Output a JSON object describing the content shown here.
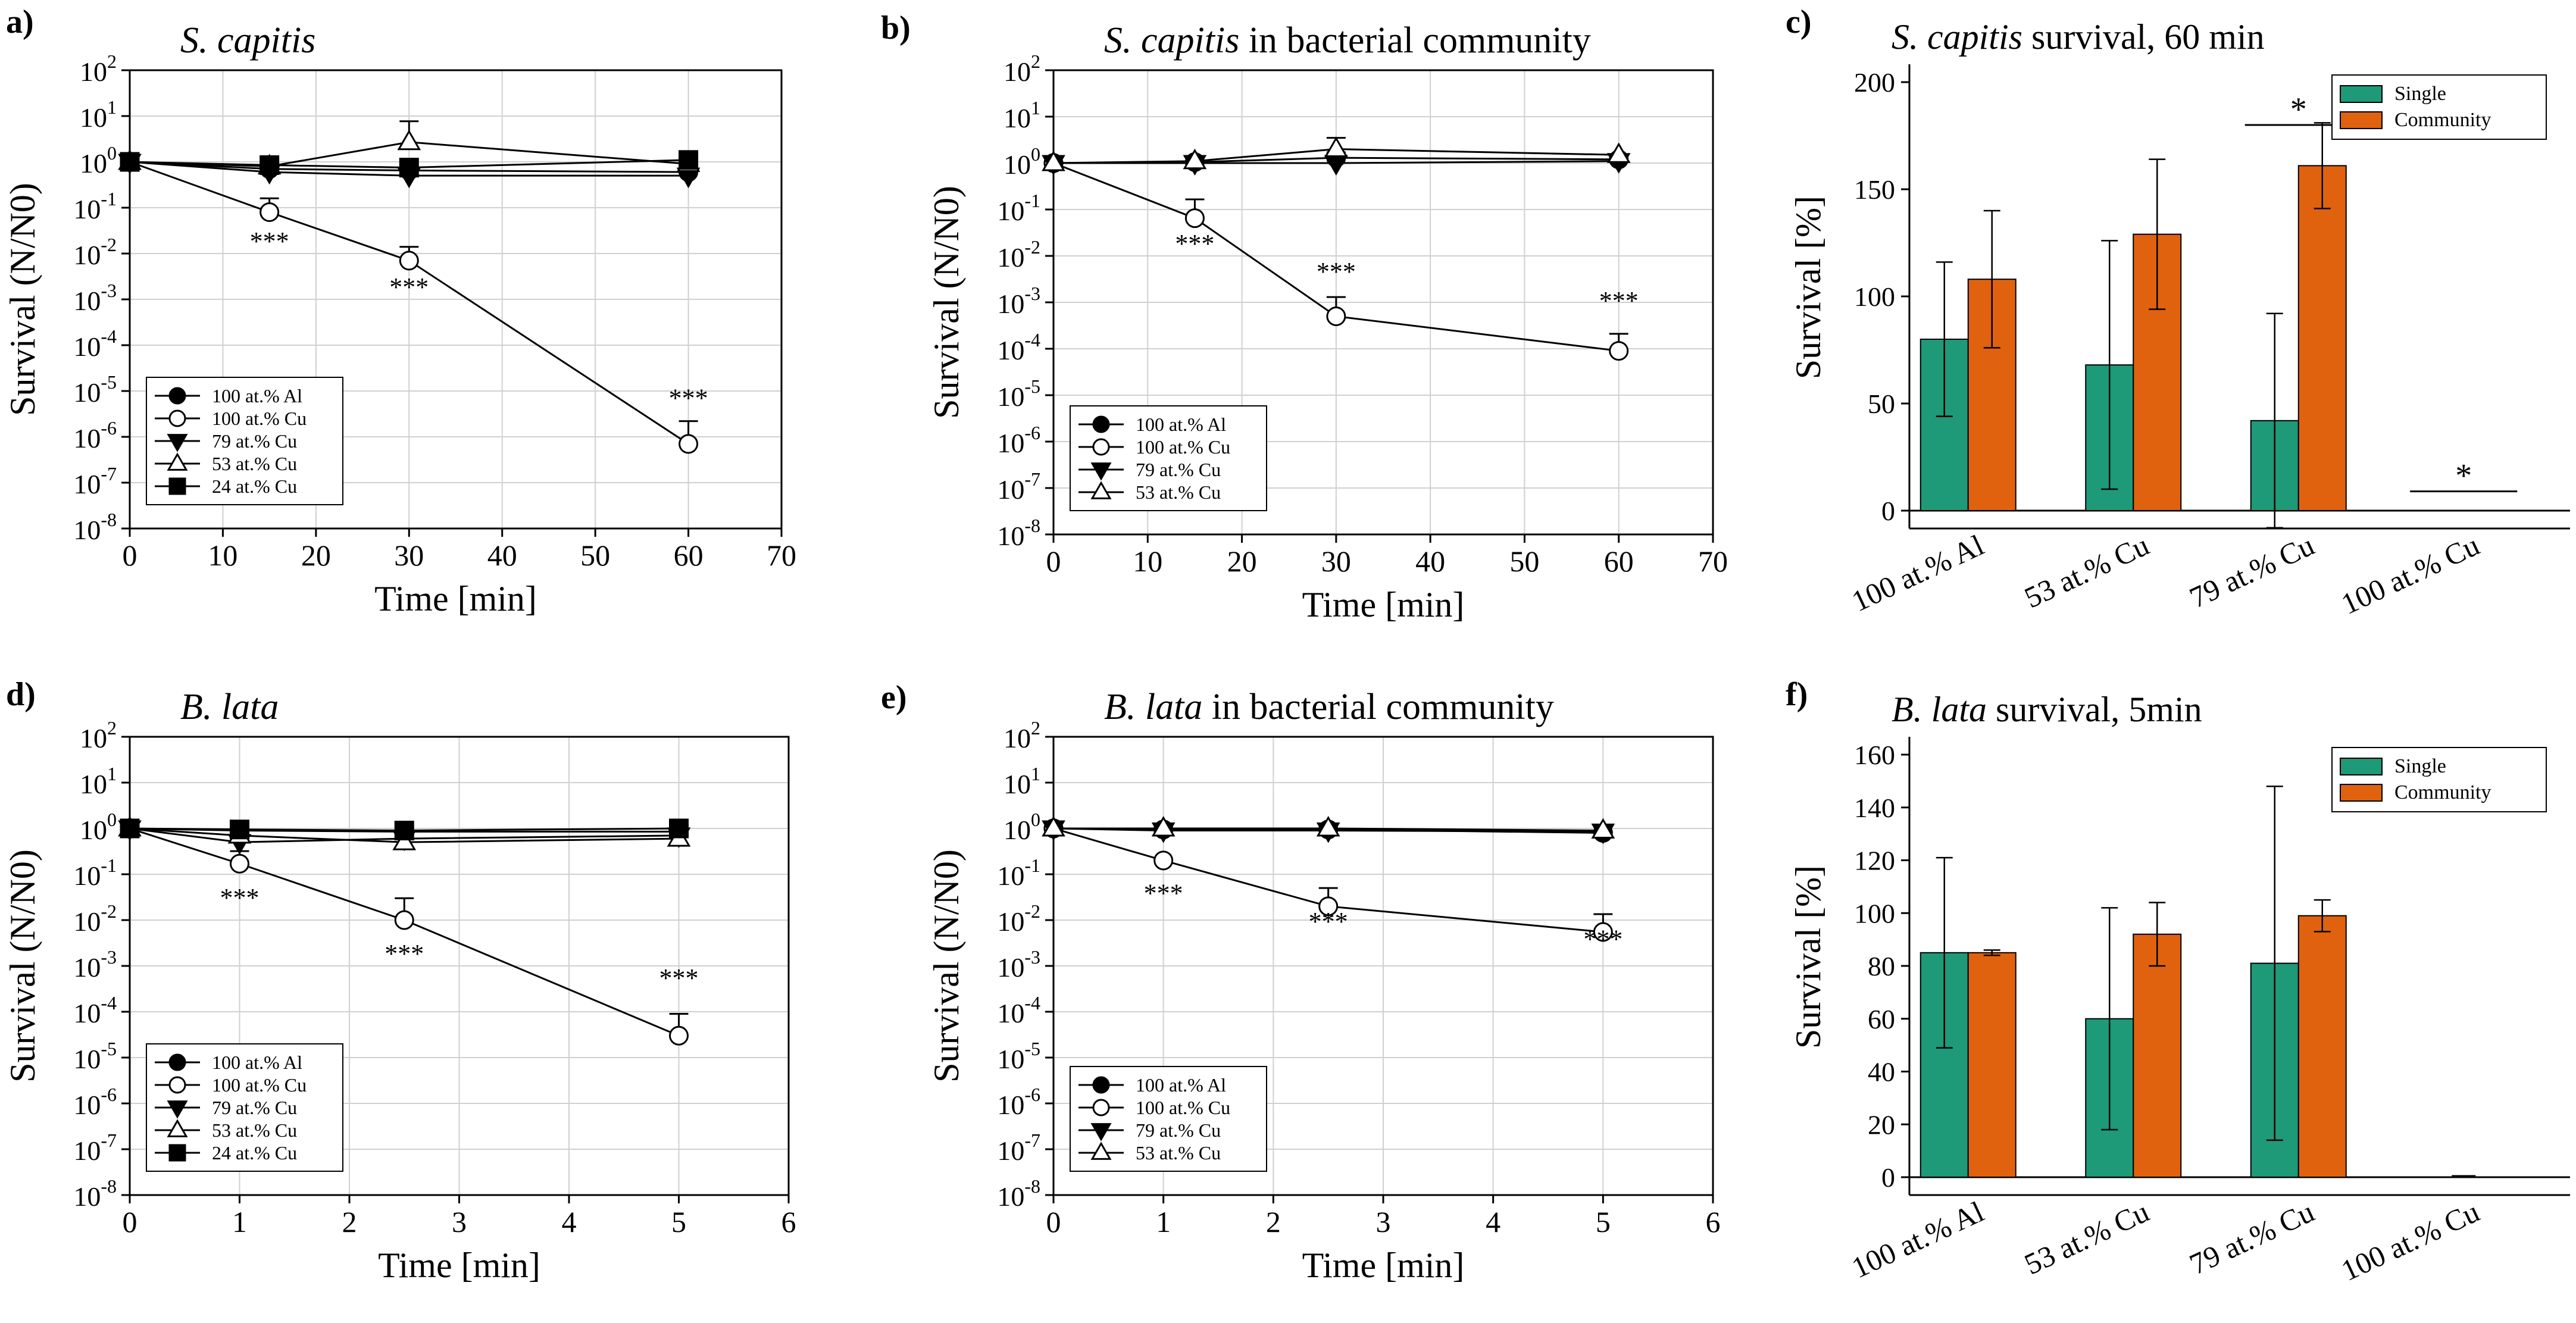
{
  "figure": {
    "colors": {
      "single": "#1e9a78",
      "community": "#e0620e",
      "grid": "#d0d0d0",
      "axis": "#000000"
    }
  },
  "chart_data": [
    {
      "panel": "a)",
      "type": "line",
      "scale": "log",
      "title_italic": "S. capitis",
      "title_rest": "",
      "xlabel": "Time [min]",
      "ylabel": "Survival (N/N0)",
      "xlim": [
        0,
        70
      ],
      "xticks": [
        "0",
        "10",
        "20",
        "30",
        "40",
        "50",
        "60",
        "70"
      ],
      "ylim_exp": [
        -8,
        2
      ],
      "legend": "bottom-left",
      "series": [
        {
          "name": "100 at.% Al",
          "marker": "circle-filled",
          "x": [
            0,
            15,
            30,
            60
          ],
          "y": [
            1.0,
            0.7,
            0.65,
            0.6
          ],
          "err": [
            0,
            0,
            0,
            0
          ]
        },
        {
          "name": "100 at.% Cu",
          "marker": "circle-open",
          "x": [
            0,
            15,
            30,
            60
          ],
          "y": [
            1.0,
            0.08,
            0.007,
            7e-07
          ],
          "err": [
            0,
            0.08,
            0.007,
            1.5e-06
          ]
        },
        {
          "name": "79 at.% Cu",
          "marker": "triangle-down-filled",
          "x": [
            0,
            15,
            30,
            60
          ],
          "y": [
            1.0,
            0.6,
            0.5,
            0.5
          ],
          "err": [
            0,
            0.3,
            0.4,
            0.4
          ]
        },
        {
          "name": "53 at.% Cu",
          "marker": "triangle-up-open",
          "x": [
            0,
            15,
            30,
            60
          ],
          "y": [
            1.0,
            0.8,
            2.7,
            0.9
          ],
          "err": [
            0,
            0,
            5,
            0
          ]
        },
        {
          "name": "24 at.% Cu",
          "marker": "square-filled",
          "x": [
            0,
            15,
            30,
            60
          ],
          "y": [
            1.0,
            0.85,
            0.75,
            1.1
          ],
          "err": [
            0,
            0,
            0,
            0
          ]
        }
      ],
      "annotations": [
        {
          "text": "***",
          "x": 15,
          "y": 0.012
        },
        {
          "text": "***",
          "x": 30,
          "y": 0.0012
        },
        {
          "text": "***",
          "x": 60,
          "y": 4.5e-06
        }
      ]
    },
    {
      "panel": "b)",
      "type": "line",
      "scale": "log",
      "title_italic": "S. capitis",
      "title_rest": " in bacterial community",
      "xlabel": "Time [min]",
      "ylabel": "Survival (N/N0)",
      "xlim": [
        0,
        70
      ],
      "xticks": [
        "0",
        "10",
        "20",
        "30",
        "40",
        "50",
        "60",
        "70"
      ],
      "ylim_exp": [
        -8,
        2
      ],
      "legend": "bottom-left",
      "series": [
        {
          "name": "100 at.% Al",
          "marker": "circle-filled",
          "x": [
            0,
            15,
            30,
            60
          ],
          "y": [
            1.0,
            1.05,
            1.3,
            1.2
          ],
          "err": [
            0,
            0,
            0,
            0
          ]
        },
        {
          "name": "100 at.% Cu",
          "marker": "circle-open",
          "x": [
            0,
            15,
            30,
            60
          ],
          "y": [
            1.0,
            0.065,
            0.0005,
            9e-05
          ],
          "err": [
            0,
            0.1,
            0.0008,
            0.00012
          ]
        },
        {
          "name": "79 at.% Cu",
          "marker": "triangle-down-filled",
          "x": [
            0,
            15,
            30,
            60
          ],
          "y": [
            1.0,
            1.0,
            1.0,
            1.1
          ],
          "err": [
            0,
            0,
            0.7,
            0
          ]
        },
        {
          "name": "53 at.% Cu",
          "marker": "triangle-up-open",
          "x": [
            0,
            15,
            30,
            60
          ],
          "y": [
            1.0,
            1.1,
            2.0,
            1.5
          ],
          "err": [
            0,
            0,
            1.5,
            0
          ]
        }
      ],
      "annotations": [
        {
          "text": "***",
          "x": 15,
          "y": 0.012
        },
        {
          "text": "***",
          "x": 30,
          "y": 0.003
        },
        {
          "text": "***",
          "x": 60,
          "y": 0.0007
        }
      ]
    },
    {
      "panel": "c)",
      "type": "bar",
      "title_italic": "S. capitis",
      "title_rest": " survival, 60 min",
      "xlabel": "",
      "ylabel": "Survival [%]",
      "ylim": [
        0,
        200
      ],
      "yticks": [
        0,
        50,
        100,
        150,
        200
      ],
      "categories": [
        "100 at.% Al",
        "53 at.% Cu",
        "79 at.% Cu",
        "100 at.% Cu"
      ],
      "legend": "top-right",
      "series": [
        {
          "name": "Single",
          "values": [
            80,
            68,
            42,
            0
          ],
          "err": [
            36,
            58,
            50,
            0
          ]
        },
        {
          "name": "Community",
          "values": [
            108,
            129,
            161,
            0
          ],
          "err": [
            32,
            35,
            20,
            0
          ]
        }
      ],
      "significance": [
        {
          "text": "*",
          "category": 2,
          "y": 180
        },
        {
          "text": "*",
          "category": 3,
          "y": 9
        }
      ]
    },
    {
      "panel": "d)",
      "type": "line",
      "scale": "log",
      "title_italic": "B. lata",
      "title_rest": "",
      "xlabel": "Time [min]",
      "ylabel": "Survival (N/N0)",
      "xlim": [
        0,
        6
      ],
      "xticks": [
        "0",
        "1",
        "2",
        "3",
        "4",
        "5",
        "6"
      ],
      "ylim_exp": [
        -8,
        2
      ],
      "legend": "bottom-left",
      "series": [
        {
          "name": "100 at.% Al",
          "marker": "circle-filled",
          "x": [
            0,
            1,
            2.5,
            5
          ],
          "y": [
            1.0,
            0.9,
            0.85,
            0.85
          ],
          "err": [
            0,
            0,
            0,
            0
          ]
        },
        {
          "name": "100 at.% Cu",
          "marker": "circle-open",
          "x": [
            0,
            1,
            2.5,
            5
          ],
          "y": [
            1.0,
            0.17,
            0.01,
            3e-05
          ],
          "err": [
            0,
            0.15,
            0.02,
            6e-05
          ]
        },
        {
          "name": "79 at.% Cu",
          "marker": "triangle-down-filled",
          "x": [
            0,
            1,
            2.5,
            5
          ],
          "y": [
            1.0,
            0.5,
            0.6,
            0.7
          ],
          "err": [
            0,
            0.3,
            0.4,
            0.5
          ]
        },
        {
          "name": "53 at.% Cu",
          "marker": "triangle-up-open",
          "x": [
            0,
            1,
            2.5,
            5
          ],
          "y": [
            1.0,
            0.7,
            0.5,
            0.6
          ],
          "err": [
            0,
            0,
            0.4,
            0.4
          ]
        },
        {
          "name": "24 at.% Cu",
          "marker": "square-filled",
          "x": [
            0,
            1,
            2.5,
            5
          ],
          "y": [
            1.0,
            0.95,
            0.9,
            1.0
          ],
          "err": [
            0,
            0,
            0,
            0
          ]
        }
      ],
      "annotations": [
        {
          "text": "***",
          "x": 1,
          "y": 0.02
        },
        {
          "text": "***",
          "x": 2.5,
          "y": 0.0012
        },
        {
          "text": "***",
          "x": 5,
          "y": 0.00035
        }
      ]
    },
    {
      "panel": "e)",
      "type": "line",
      "scale": "log",
      "title_italic": "B. lata",
      "title_rest": " in bacterial community",
      "xlabel": "Time [min]",
      "ylabel": "Survival (N/N0)",
      "xlim": [
        0,
        6
      ],
      "xticks": [
        "0",
        "1",
        "2",
        "3",
        "4",
        "5",
        "6"
      ],
      "ylim_exp": [
        -8,
        2
      ],
      "legend": "bottom-left",
      "series": [
        {
          "name": "100 at.% Al",
          "marker": "circle-filled",
          "x": [
            0,
            1,
            2.5,
            5
          ],
          "y": [
            1.0,
            0.95,
            0.95,
            0.8
          ],
          "err": [
            0,
            0,
            0,
            0
          ]
        },
        {
          "name": "100 at.% Cu",
          "marker": "circle-open",
          "x": [
            0,
            1,
            2.5,
            5
          ],
          "y": [
            1.0,
            0.2,
            0.02,
            0.0055
          ],
          "err": [
            0,
            0,
            0.03,
            0.008
          ]
        },
        {
          "name": "79 at.% Cu",
          "marker": "triangle-down-filled",
          "x": [
            0,
            1,
            2.5,
            5
          ],
          "y": [
            1.0,
            0.9,
            0.9,
            0.85
          ],
          "err": [
            0,
            0,
            0,
            0
          ]
        },
        {
          "name": "53 at.% Cu",
          "marker": "triangle-up-open",
          "x": [
            0,
            1,
            2.5,
            5
          ],
          "y": [
            1.0,
            1.0,
            1.0,
            0.9
          ],
          "err": [
            0,
            0,
            0,
            0
          ]
        }
      ],
      "annotations": [
        {
          "text": "***",
          "x": 1,
          "y": 0.025
        },
        {
          "text": "***",
          "x": 2.5,
          "y": 0.006
        },
        {
          "text": "***",
          "x": 5,
          "y": 0.0025
        }
      ]
    },
    {
      "panel": "f)",
      "type": "bar",
      "title_italic": "B. lata",
      "title_rest": " survival, 5min",
      "xlabel": "",
      "ylabel": "Survival [%]",
      "ylim": [
        0,
        160
      ],
      "yticks": [
        0,
        20,
        40,
        60,
        80,
        100,
        120,
        140,
        160
      ],
      "categories": [
        "100 at.% Al",
        "53 at.% Cu",
        "79 at.% Cu",
        "100 at.% Cu"
      ],
      "legend": "top-right",
      "series": [
        {
          "name": "Single",
          "values": [
            85,
            60,
            81,
            0
          ],
          "err": [
            36,
            42,
            67,
            0
          ]
        },
        {
          "name": "Community",
          "values": [
            85,
            92,
            99,
            0
          ],
          "err": [
            1,
            12,
            6,
            0
          ]
        }
      ],
      "significance": []
    }
  ]
}
